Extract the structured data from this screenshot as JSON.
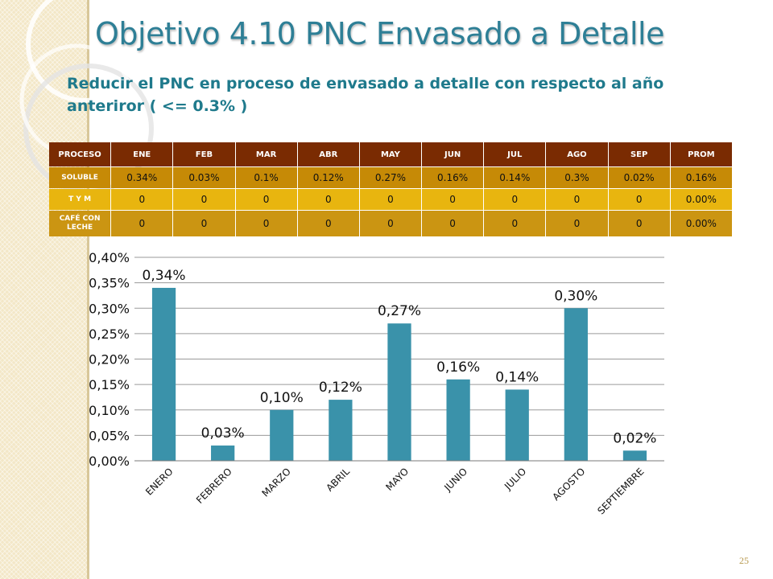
{
  "slide": {
    "title": "Objetivo 4.10 PNC Envasado a Detalle",
    "subtitle": "Reducir el PNC en proceso de envasado a detalle  con respecto al año anteriror ( <= 0.3% )",
    "page_number": "25"
  },
  "table": {
    "headers": [
      "PROCESO",
      "ENE",
      "FEB",
      "MAR",
      "ABR",
      "MAY",
      "JUN",
      "JUL",
      "AGO",
      "SEP",
      "PROM"
    ],
    "rows": [
      [
        "SOLUBLE",
        "0.34%",
        "0.03%",
        "0.1%",
        "0.12%",
        "0.27%",
        "0.16%",
        "0.14%",
        "0.3%",
        "0.02%",
        "0.16%"
      ],
      [
        "T Y M",
        "0",
        "0",
        "0",
        "0",
        "0",
        "0",
        "0",
        "0",
        "0",
        "0.00%"
      ],
      [
        "CAFÉ CON LECHE",
        "0",
        "0",
        "0",
        "0",
        "0",
        "0",
        "0",
        "0",
        "0",
        "0.00%"
      ]
    ]
  },
  "chart_data": {
    "type": "bar",
    "categories": [
      "ENERO",
      "FEBRERO",
      "MARZO",
      "ABRIL",
      "MAYO",
      "JUNIO",
      "JULIO",
      "AGOSTO",
      "SEPTIEMBRE"
    ],
    "values": [
      0.34,
      0.03,
      0.1,
      0.12,
      0.27,
      0.16,
      0.14,
      0.3,
      0.02
    ],
    "data_labels": [
      "0,34%",
      "0,03%",
      "0,10%",
      "0,12%",
      "0,27%",
      "0,16%",
      "0,14%",
      "0,30%",
      "0,02%"
    ],
    "ylim": [
      0,
      0.4
    ],
    "yticks": [
      0,
      0.05,
      0.1,
      0.15,
      0.2,
      0.25,
      0.3,
      0.35,
      0.4
    ],
    "ytick_labels": [
      "0,00%",
      "0,05%",
      "0,10%",
      "0,15%",
      "0,20%",
      "0,25%",
      "0,30%",
      "0,35%",
      "0,40%"
    ],
    "grid": true,
    "legend": "none",
    "bar_color": "#3a92aa",
    "title": "",
    "xlabel": "",
    "ylabel": ""
  },
  "colors": {
    "title": "#2e7f96",
    "subtitle": "#1f7a8c",
    "table_header": "#7a2b02",
    "table_row": "#c8900a",
    "table_row_alt": "#e8b50f"
  }
}
